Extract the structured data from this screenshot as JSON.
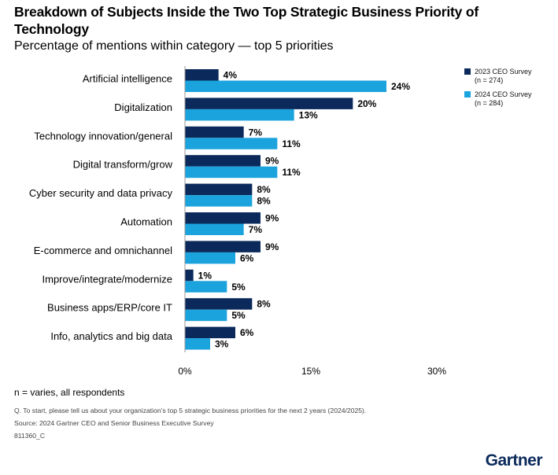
{
  "header": {
    "title": "Breakdown of Subjects Inside the Two Top Strategic Business Priority of Technology",
    "subtitle": "Percentage of mentions within category — top 5 priorities"
  },
  "legend": {
    "items": [
      {
        "line1": "2023 CEO Survey",
        "line2": "(n = 274)",
        "color": "#0b2a5b"
      },
      {
        "line1": "2024 CEO Survey",
        "line2": "(n = 284)",
        "color": "#1aa3dd"
      }
    ]
  },
  "footer": {
    "note": "n = varies, all respondents",
    "question": "Q. To start, please tell us about your organization’s top 5 strategic business priorities for the next 2 years (2024/2025).",
    "source": "Source: 2024 Gartner CEO and Senior Business Executive Survey",
    "id": "811360_C",
    "logo": "Gartner"
  },
  "chart_data": {
    "type": "bar",
    "orientation": "horizontal",
    "categories": [
      "Artificial intelligence",
      "Digitalization",
      "Technology innovation/general",
      "Digital transform/grow",
      "Cyber security and data privacy",
      "Automation",
      "E-commerce and omnichannel",
      "Improve/integrate/modernize",
      "Business apps/ERP/core IT",
      "Info, analytics and big data"
    ],
    "series": [
      {
        "name": "2023 CEO Survey",
        "color": "#0b2a5b",
        "values": [
          4,
          20,
          7,
          9,
          8,
          9,
          9,
          1,
          8,
          6
        ]
      },
      {
        "name": "2024 CEO Survey",
        "color": "#1aa3dd",
        "values": [
          24,
          13,
          11,
          11,
          8,
          7,
          6,
          5,
          5,
          3
        ]
      }
    ],
    "value_suffix": "%",
    "xlim": [
      0,
      30
    ],
    "xticks": [
      "0%",
      "15%",
      "30%"
    ],
    "grid": false,
    "legend_position": "right"
  }
}
